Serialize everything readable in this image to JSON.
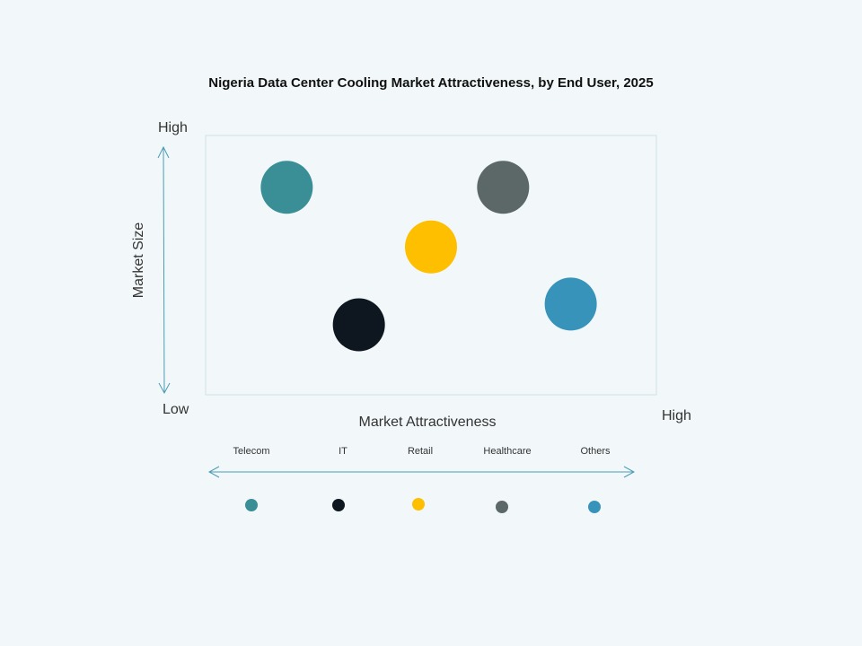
{
  "chart_data": {
    "type": "scatter",
    "title": "Nigeria Data Center Cooling Market Attractiveness,  by End User,  2025",
    "xlabel": "Market Attractiveness",
    "ylabel": "Market Size",
    "x_low_label": "Low",
    "x_high_label": "High",
    "y_high_label": "High",
    "xlim": [
      0,
      1
    ],
    "ylim": [
      0,
      1
    ],
    "grid": false,
    "legend_position": "bottom",
    "series": [
      {
        "name": "Telecom",
        "x": 0.18,
        "y": 0.8,
        "color": "#3a8f97"
      },
      {
        "name": "IT",
        "x": 0.34,
        "y": 0.27,
        "color": "#0e1720"
      },
      {
        "name": "Retail",
        "x": 0.5,
        "y": 0.57,
        "color": "#fdbf00"
      },
      {
        "name": "Healthcare",
        "x": 0.66,
        "y": 0.8,
        "color": "#5c6767"
      },
      {
        "name": "Others",
        "x": 0.81,
        "y": 0.35,
        "color": "#3793b9"
      }
    ],
    "axis_color": "#4a9bb5"
  }
}
